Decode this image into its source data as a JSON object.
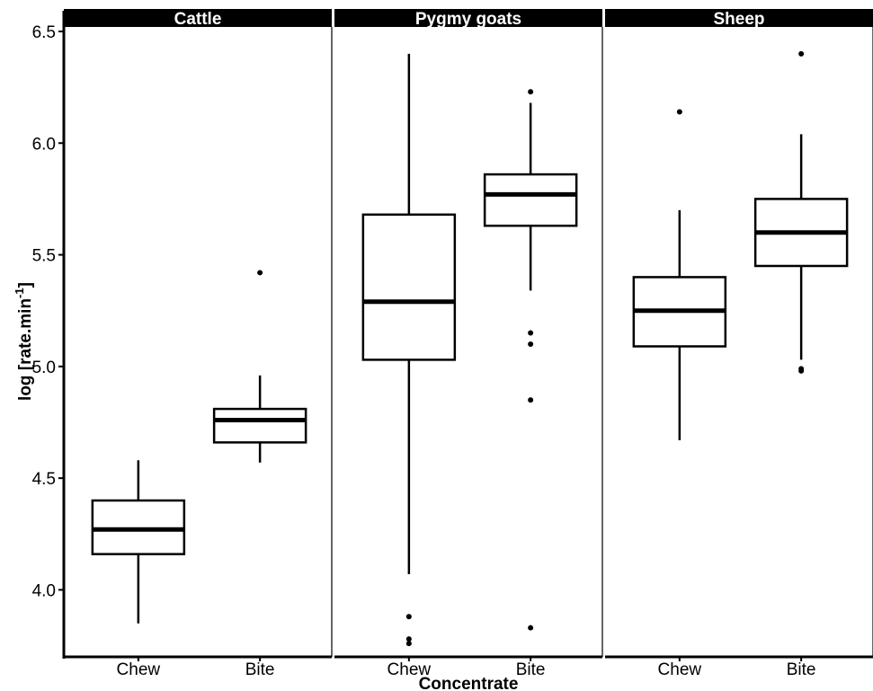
{
  "chart_data": {
    "type": "boxplot",
    "xlabel": "Concentrate",
    "ylabel": {
      "main": "log [rate.min",
      "superscript": "-1",
      "end": "]"
    },
    "ylim": [
      3.7,
      6.52
    ],
    "yticks": [
      4.0,
      4.5,
      5.0,
      5.5,
      6.0,
      6.5
    ],
    "ytick_labels": [
      "4.0",
      "4.5",
      "5.0",
      "5.5",
      "6.0",
      "6.5"
    ],
    "categories": [
      "Chew",
      "Bite"
    ],
    "facets": [
      {
        "label": "Cattle",
        "boxes": [
          {
            "category": "Chew",
            "whisker_low": 3.85,
            "q1": 4.16,
            "median": 4.27,
            "q3": 4.4,
            "whisker_high": 4.58,
            "outliers": []
          },
          {
            "category": "Bite",
            "whisker_low": 4.57,
            "q1": 4.66,
            "median": 4.76,
            "q3": 4.81,
            "whisker_high": 4.96,
            "outliers": [
              5.42
            ]
          }
        ]
      },
      {
        "label": "Pygmy goats",
        "boxes": [
          {
            "category": "Chew",
            "whisker_low": 4.07,
            "q1": 5.03,
            "median": 5.29,
            "q3": 5.68,
            "whisker_high": 6.4,
            "outliers": [
              3.88,
              3.78,
              3.76
            ]
          },
          {
            "category": "Bite",
            "whisker_low": 5.34,
            "q1": 5.63,
            "median": 5.77,
            "q3": 5.86,
            "whisker_high": 6.18,
            "outliers": [
              6.23,
              5.15,
              5.1,
              4.85,
              3.83
            ]
          }
        ]
      },
      {
        "label": "Sheep",
        "boxes": [
          {
            "category": "Chew",
            "whisker_low": 4.67,
            "q1": 5.09,
            "median": 5.25,
            "q3": 5.4,
            "whisker_high": 5.7,
            "outliers": [
              6.14
            ]
          },
          {
            "category": "Bite",
            "whisker_low": 5.03,
            "q1": 5.45,
            "median": 5.6,
            "q3": 5.75,
            "whisker_high": 6.04,
            "outliers": [
              6.4,
              4.99,
              4.98
            ]
          }
        ]
      }
    ]
  }
}
